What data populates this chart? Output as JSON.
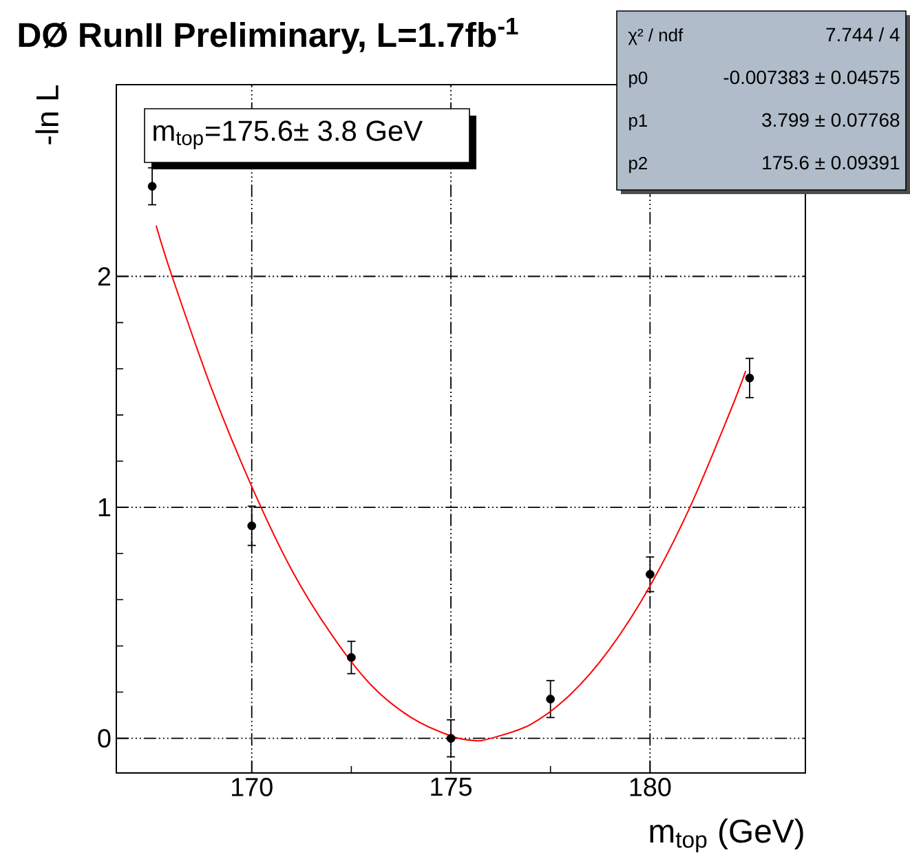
{
  "chart_data": {
    "type": "scatter",
    "title": "DØ RunII Preliminary, L=1.7fb$^{-1}$",
    "xlabel": "m$_{top}$ (GeV)",
    "ylabel": "-ln L",
    "annotations": [
      "m$_{top}$=175.6± 3.8 GeV",
      "χ² / ndf",
      "7.744 / 4",
      "p0",
      "-0.007383 ± 0.04575",
      "p1",
      "3.799 ± 0.07768",
      "p2",
      "175.6 ± 0.09391"
    ],
    "xlim": [
      166.6,
      183.9
    ],
    "ylim": [
      -0.15,
      2.83
    ],
    "xticks": [
      170,
      175,
      180
    ],
    "yticks": [
      0,
      1,
      2
    ],
    "grid": true,
    "marker": "circle",
    "series": [
      {
        "type": "scatter",
        "color": "#000000",
        "x": [
          167.5,
          170,
          172.5,
          175,
          177.5,
          180,
          182.5
        ],
        "values": [
          2.39,
          0.92,
          0.35,
          0.0,
          0.17,
          0.71,
          1.56
        ],
        "errors": [
          0.08,
          0.085,
          0.07,
          0.08,
          0.08,
          0.075,
          0.085
        ]
      },
      {
        "type": "line",
        "color": "#ff0000",
        "marker": "none",
        "x": [
          167.6,
          168,
          169,
          170,
          171,
          172,
          173,
          174,
          175,
          175.6,
          176,
          177,
          178,
          179,
          180,
          181,
          182,
          182.4
        ],
        "values": [
          2.22,
          2.0,
          1.51,
          1.09,
          0.73,
          0.45,
          0.23,
          0.09,
          0.01,
          -0.01,
          0.0,
          0.06,
          0.19,
          0.39,
          0.66,
          1.0,
          1.41,
          1.59
        ]
      }
    ]
  }
}
